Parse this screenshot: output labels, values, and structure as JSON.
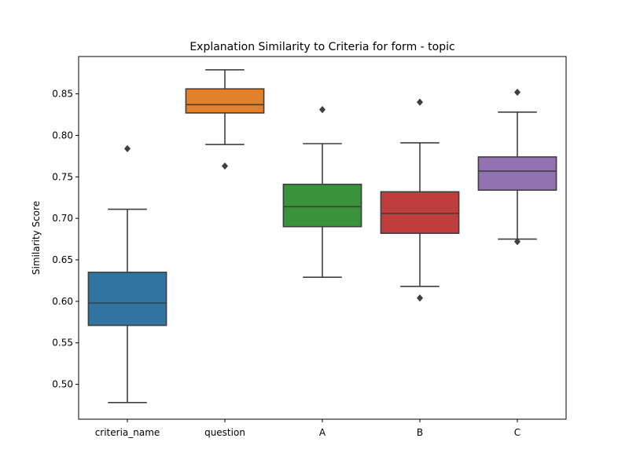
{
  "chart_data": {
    "type": "boxplot",
    "title": "Explanation Similarity to Criteria for form - topic",
    "xlabel": "",
    "ylabel": "Similarity Score",
    "ylim": [
      0.458,
      0.895
    ],
    "yticks": [
      "0.50",
      "0.55",
      "0.60",
      "0.65",
      "0.70",
      "0.75",
      "0.80",
      "0.85"
    ],
    "grid": false,
    "categories": [
      "criteria_name",
      "question",
      "A",
      "B",
      "C"
    ],
    "boxes": [
      {
        "category": "criteria_name",
        "color": "#3274a1",
        "whisker_low": 0.478,
        "q1": 0.571,
        "median": 0.598,
        "q3": 0.635,
        "whisker_high": 0.711,
        "outliers": [
          0.784
        ]
      },
      {
        "category": "question",
        "color": "#e1812c",
        "whisker_low": 0.789,
        "q1": 0.827,
        "median": 0.837,
        "q3": 0.856,
        "whisker_high": 0.879,
        "outliers": [
          0.763
        ]
      },
      {
        "category": "A",
        "color": "#3a923a",
        "whisker_low": 0.629,
        "q1": 0.69,
        "median": 0.714,
        "q3": 0.741,
        "whisker_high": 0.79,
        "outliers": [
          0.831
        ]
      },
      {
        "category": "B",
        "color": "#c03d3e",
        "whisker_low": 0.618,
        "q1": 0.682,
        "median": 0.706,
        "q3": 0.732,
        "whisker_high": 0.791,
        "outliers": [
          0.604,
          0.84
        ]
      },
      {
        "category": "C",
        "color": "#9372b2",
        "whisker_low": 0.675,
        "q1": 0.734,
        "median": 0.757,
        "q3": 0.774,
        "whisker_high": 0.828,
        "outliers": [
          0.672,
          0.852
        ]
      }
    ]
  }
}
